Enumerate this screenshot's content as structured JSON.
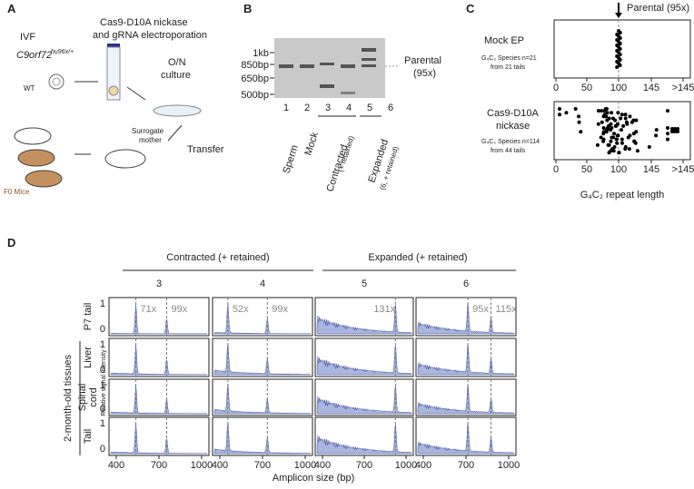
{
  "panel_a": {
    "letter": "A",
    "ivf": "IVF",
    "allele": "C9orf72",
    "allele_sup": "hu96x/+",
    "wt": "WT",
    "step1": [
      "Cas9-D10A nickase",
      "and gRNA electroporation"
    ],
    "culture": [
      "O/N",
      "culture"
    ],
    "surrogate": [
      "Surrogate",
      "mother"
    ],
    "transfer": "Transfer",
    "f0": "F0 Mice"
  },
  "panel_b": {
    "letter": "B",
    "markers": [
      "1kb",
      "850bp",
      "650bp",
      "500bp"
    ],
    "lanes": [
      "1",
      "2",
      "3",
      "4",
      "5",
      "6"
    ],
    "parental": [
      "Parental",
      "(95x)"
    ],
    "sperm": "Sperm",
    "mock": "Mock",
    "contracted": [
      "Contracted",
      "(+ retained)"
    ],
    "expanded": [
      "Expanded",
      "(6, + retained)"
    ]
  },
  "panel_c": {
    "letter": "C",
    "parental": "Parental (95x)",
    "mock": [
      "Mock EP"
    ],
    "mock_info": [
      "G₄C₂ Species n=21",
      "from 21 tails"
    ],
    "nickase": [
      "Cas9-D10A",
      "nickase"
    ],
    "nickase_info": [
      "G₄C₂ Species n=114",
      "from 44 tails"
    ],
    "ticks": [
      "0",
      "50",
      "100",
      "145",
      ">145"
    ],
    "xlabel": "G₄C₂ repeat length"
  },
  "panel_d": {
    "letter": "D",
    "groups": [
      "Contracted (+ retained)",
      "Expanded (+ retained)"
    ],
    "columns": [
      {
        "label": "3",
        "peaks": [
          "71x",
          "99x"
        ]
      },
      {
        "label": "4",
        "peaks": [
          "52x",
          "99x"
        ]
      },
      {
        "label": "5",
        "peaks": [
          "131x"
        ]
      },
      {
        "label": "6",
        "peaks": [
          "95x",
          "115x"
        ]
      }
    ],
    "rows": [
      [
        "P7 tail"
      ],
      [
        "Liver"
      ],
      [
        "Spinal",
        "cord"
      ],
      [
        "Tail"
      ]
    ],
    "tissue_group": "2-month-old tissues",
    "ylabel": "Relative signal intensity",
    "yticks": [
      "1",
      "0"
    ],
    "xticks": [
      "400",
      "700",
      "1000"
    ],
    "xlabel": "Amplicon size (bp)"
  }
}
